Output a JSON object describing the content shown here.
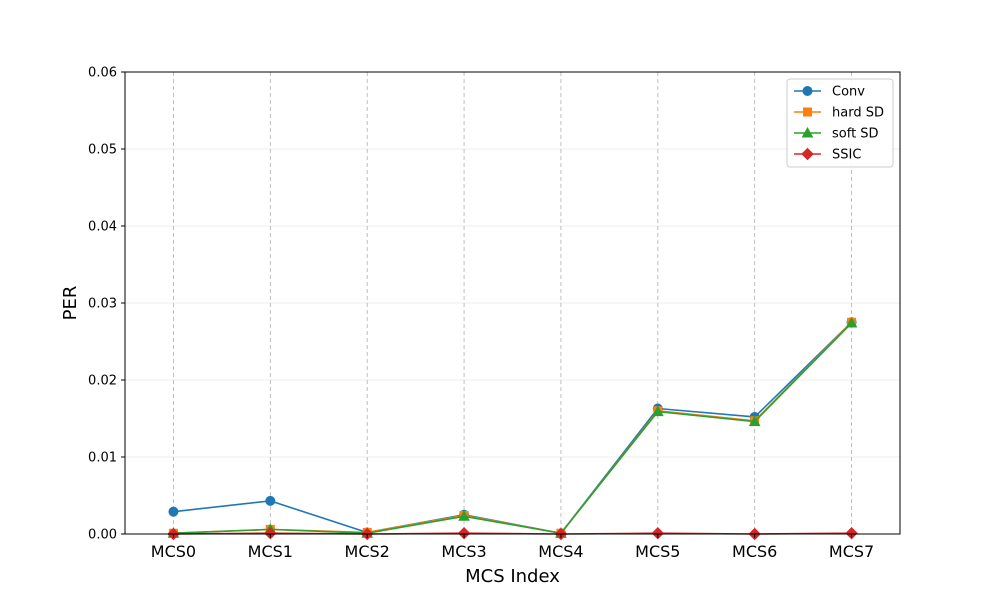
{
  "chart_data": {
    "type": "line",
    "title": "",
    "xlabel": "MCS Index",
    "ylabel": "PER",
    "categories": [
      "MCS0",
      "MCS1",
      "MCS2",
      "MCS3",
      "MCS4",
      "MCS5",
      "MCS6",
      "MCS7"
    ],
    "ylim": [
      0,
      0.06
    ],
    "yticks": [
      "0.00",
      "0.01",
      "0.02",
      "0.03",
      "0.04",
      "0.05",
      "0.06"
    ],
    "grid": {
      "x": "dashed",
      "y": "light"
    },
    "legend_position": "top-right",
    "series": [
      {
        "name": "Conv",
        "color": "#1f77b4",
        "marker": "circle",
        "values": [
          0.0029,
          0.0043,
          0.0002,
          0.0025,
          0.0001,
          0.0163,
          0.0152,
          0.0275
        ]
      },
      {
        "name": "hard SD",
        "color": "#ff7f0e",
        "marker": "square",
        "values": [
          0.0001,
          0.0006,
          0.0002,
          0.0024,
          0.0001,
          0.016,
          0.0147,
          0.0275
        ]
      },
      {
        "name": "soft SD",
        "color": "#2ca02c",
        "marker": "triangle",
        "values": [
          0.0001,
          0.0006,
          0.0001,
          0.0023,
          0.0001,
          0.0159,
          0.0146,
          0.0274
        ]
      },
      {
        "name": "SSIC",
        "color": "#d62728",
        "marker": "diamond",
        "values": [
          0.0,
          0.0001,
          0.0,
          0.0001,
          0.0,
          0.0001,
          0.0,
          0.0001
        ]
      }
    ]
  }
}
